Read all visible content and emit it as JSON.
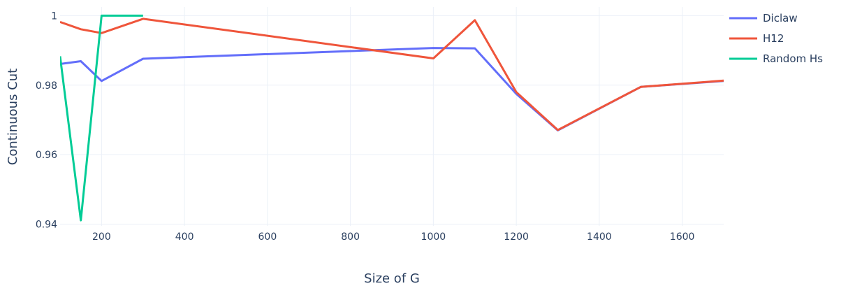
{
  "chart_data": {
    "type": "line",
    "title": "",
    "xlabel": "Size of G",
    "ylabel": "Continuous Cut",
    "xlim": [
      100,
      1700
    ],
    "ylim": [
      0.9395,
      1.0025
    ],
    "xticks": [
      200,
      400,
      600,
      800,
      1000,
      1200,
      1400,
      1600
    ],
    "xtick_labels": [
      "200",
      "400",
      "600",
      "800",
      "1000",
      "1200",
      "1400",
      "1600"
    ],
    "yticks": [
      0.94,
      0.96,
      0.98,
      1.0
    ],
    "ytick_labels": [
      "0.94",
      "0.96",
      "0.98",
      "1"
    ],
    "grid": true,
    "legend_position": "top-right",
    "series": [
      {
        "name": "Diclaw",
        "color": "#636efa",
        "x": [
          100,
          150,
          200,
          300,
          1000,
          1100,
          1200,
          1300,
          1500,
          1700
        ],
        "y": [
          0.9861,
          0.9869,
          0.9812,
          0.9876,
          0.9907,
          0.9906,
          0.9775,
          0.967,
          0.9795,
          0.9812
        ]
      },
      {
        "name": "H12",
        "color": "#ef553b",
        "x": [
          100,
          150,
          200,
          300,
          1000,
          1100,
          1200,
          1300,
          1500,
          1700
        ],
        "y": [
          0.9982,
          0.9961,
          0.995,
          0.9991,
          0.9877,
          0.9987,
          0.978,
          0.9671,
          0.9795,
          0.9813
        ]
      },
      {
        "name": "Random Hs",
        "color": "#00cc96",
        "x": [
          100,
          150,
          200,
          300
        ],
        "y": [
          0.9883,
          0.9411,
          1.0,
          1.0
        ]
      }
    ]
  }
}
